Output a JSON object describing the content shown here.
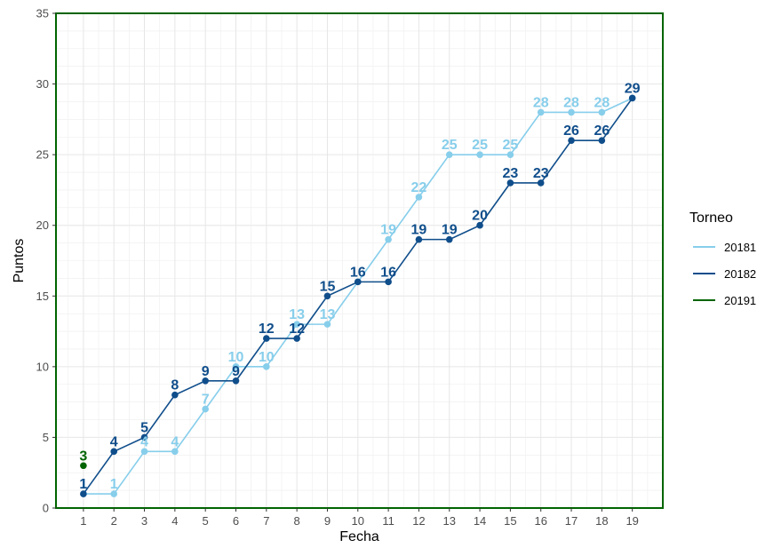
{
  "chart_data": {
    "type": "line",
    "xlabel": "Fecha",
    "ylabel": "Puntos",
    "x": [
      1,
      2,
      3,
      4,
      5,
      6,
      7,
      8,
      9,
      10,
      11,
      12,
      13,
      14,
      15,
      16,
      17,
      18,
      19
    ],
    "x_ticks": [
      "1",
      "2",
      "3",
      "4",
      "5",
      "6",
      "7",
      "8",
      "9",
      "10",
      "11",
      "12",
      "13",
      "14",
      "15",
      "16",
      "17",
      "18",
      "19"
    ],
    "xlim": [
      0.1,
      20
    ],
    "ylim": [
      0,
      35
    ],
    "y_ticks": [
      0,
      5,
      10,
      15,
      20,
      25,
      30,
      35
    ],
    "grid": true,
    "legend": {
      "title": "Torneo",
      "position": "right"
    },
    "series": [
      {
        "name": "20181",
        "color": "#87CEEB",
        "x": [
          1,
          2,
          3,
          4,
          5,
          6,
          7,
          8,
          9,
          10,
          11,
          12,
          13,
          14,
          15,
          16,
          17,
          18,
          19
        ],
        "values": [
          1,
          1,
          4,
          4,
          7,
          10,
          10,
          13,
          13,
          16,
          19,
          22,
          25,
          25,
          25,
          28,
          28,
          28,
          29
        ],
        "show_labels": [
          true,
          true,
          true,
          true,
          true,
          true,
          true,
          true,
          true,
          false,
          true,
          true,
          true,
          true,
          true,
          true,
          true,
          true,
          false
        ]
      },
      {
        "name": "20182",
        "color": "#104E8B",
        "x": [
          1,
          2,
          3,
          4,
          5,
          6,
          7,
          8,
          9,
          10,
          11,
          12,
          13,
          14,
          15,
          16,
          17,
          18,
          19
        ],
        "values": [
          1,
          4,
          5,
          8,
          9,
          9,
          12,
          12,
          15,
          16,
          16,
          19,
          19,
          20,
          23,
          23,
          26,
          26,
          29
        ],
        "show_labels": [
          true,
          true,
          true,
          true,
          true,
          true,
          true,
          true,
          true,
          true,
          true,
          true,
          true,
          true,
          true,
          true,
          true,
          true,
          true
        ]
      },
      {
        "name": "20191",
        "color": "#006400",
        "x": [
          1
        ],
        "values": [
          3
        ],
        "show_labels": [
          true
        ]
      }
    ],
    "frame_color": "#006400"
  }
}
